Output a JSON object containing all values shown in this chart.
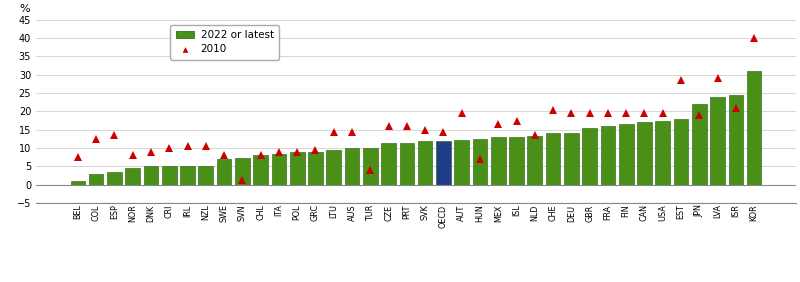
{
  "categories": [
    "BEL",
    "COL",
    "ESP",
    "NOR",
    "DNK",
    "CRI",
    "IRL",
    "NZL",
    "SWE",
    "SVN",
    "CHL",
    "ITA",
    "POL",
    "GRC",
    "LTU",
    "AUS",
    "TUR",
    "CZE",
    "PRT",
    "SVK",
    "OECD",
    "AUT",
    "HUN",
    "MEX",
    "ISL",
    "NLD",
    "CHE",
    "DEU",
    "GBR",
    "FRA",
    "FIN",
    "CAN",
    "USA",
    "EST",
    "JPN",
    "LVA",
    "ISR",
    "KOR"
  ],
  "bar_values": [
    1.0,
    3.0,
    3.5,
    4.5,
    5.0,
    5.0,
    5.2,
    5.2,
    7.0,
    7.2,
    8.2,
    8.5,
    8.8,
    9.0,
    9.5,
    10.0,
    10.0,
    11.5,
    11.5,
    12.0,
    12.0,
    12.2,
    12.5,
    13.0,
    13.0,
    13.2,
    14.0,
    14.2,
    15.5,
    16.0,
    16.5,
    17.0,
    17.5,
    18.0,
    22.0,
    24.0,
    24.5,
    31.0
  ],
  "triangle_values": [
    7.5,
    12.5,
    13.5,
    8.0,
    9.0,
    10.0,
    10.5,
    10.5,
    8.0,
    1.2,
    8.0,
    9.0,
    9.0,
    9.5,
    14.5,
    14.5,
    4.0,
    16.0,
    16.0,
    15.0,
    14.5,
    19.5,
    7.0,
    16.5,
    17.5,
    13.5,
    20.5,
    19.5,
    19.5,
    19.5,
    19.5,
    19.5,
    19.5,
    28.5,
    19.0,
    29.0,
    21.0,
    40.0
  ],
  "oecd_index": 20,
  "bar_color_green": "#4a9018",
  "bar_color_blue": "#1f3d8a",
  "triangle_color": "#cc0000",
  "ylim": [
    -5,
    45
  ],
  "yticks": [
    -5,
    0,
    5,
    10,
    15,
    20,
    25,
    30,
    35,
    40,
    45
  ],
  "ylabel": "%",
  "legend_bar_label": "2022 or latest",
  "legend_tri_label": "2010",
  "grid_color": "#d0d0d0",
  "bar_edge_color": "#1a5e08",
  "bg_color": "#ffffff"
}
